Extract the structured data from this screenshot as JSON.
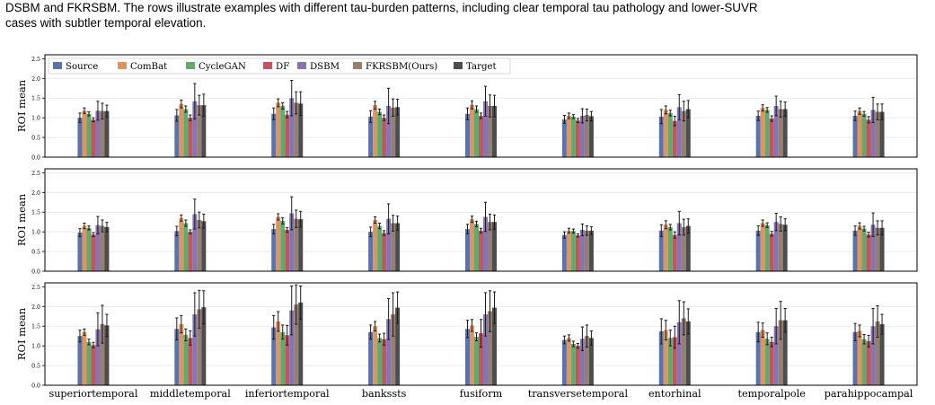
{
  "caption": {
    "line1": "DSBM and FKRSBM. The rows illustrate examples with different tau-burden patterns, including clear temporal tau pathology and lower-SUVR",
    "line2": "cases with subtler temporal elevation."
  },
  "chart_data": {
    "type": "bar",
    "ylabel": "ROI mean",
    "ylim": [
      0,
      2.6
    ],
    "yticks": [
      "0.0",
      "0.5",
      "1.0",
      "1.5",
      "2.0",
      "2.5"
    ],
    "legend_placement": "top-left",
    "grid": "horizontal",
    "categories": [
      "superiortemporal",
      "middletemporal",
      "inferiortemporal",
      "bankssts",
      "fusiform",
      "transversetemporal",
      "entorhinal",
      "temporalpole",
      "parahippocampal"
    ],
    "series": [
      {
        "name": "Source",
        "color": "#5b73a8"
      },
      {
        "name": "ComBat",
        "color": "#e0935f"
      },
      {
        "name": "CycleGAN",
        "color": "#63a96d"
      },
      {
        "name": "DF",
        "color": "#c4545d"
      },
      {
        "name": "DSBM",
        "color": "#8675b1"
      },
      {
        "name": "FKRSBM(Ours)",
        "color": "#957f6f"
      },
      {
        "name": "Target",
        "color": "#4d4d4d"
      }
    ],
    "panels": [
      {
        "values": [
          [
            1.0,
            1.18,
            1.1,
            0.95,
            1.18,
            1.17,
            1.17
          ],
          [
            1.06,
            1.35,
            1.22,
            1.0,
            1.42,
            1.32,
            1.32
          ],
          [
            1.1,
            1.38,
            1.3,
            1.08,
            1.5,
            1.38,
            1.36
          ],
          [
            1.03,
            1.32,
            1.15,
            1.0,
            1.3,
            1.26,
            1.27
          ],
          [
            1.1,
            1.33,
            1.22,
            1.05,
            1.42,
            1.3,
            1.3
          ],
          [
            0.96,
            1.05,
            1.03,
            0.93,
            1.05,
            1.07,
            1.04
          ],
          [
            1.03,
            1.2,
            1.12,
            0.92,
            1.27,
            1.17,
            1.22
          ],
          [
            1.05,
            1.25,
            1.2,
            0.98,
            1.3,
            1.22,
            1.22
          ],
          [
            1.05,
            1.17,
            1.1,
            0.95,
            1.2,
            1.15,
            1.15
          ]
        ],
        "errors": [
          [
            0.12,
            0.07,
            0.05,
            0.05,
            0.24,
            0.2,
            0.15
          ],
          [
            0.15,
            0.1,
            0.08,
            0.07,
            0.45,
            0.25,
            0.28
          ],
          [
            0.15,
            0.1,
            0.08,
            0.08,
            0.45,
            0.28,
            0.3
          ],
          [
            0.15,
            0.1,
            0.07,
            0.07,
            0.45,
            0.22,
            0.2
          ],
          [
            0.15,
            0.1,
            0.08,
            0.07,
            0.38,
            0.28,
            0.27
          ],
          [
            0.1,
            0.07,
            0.05,
            0.05,
            0.18,
            0.15,
            0.12
          ],
          [
            0.18,
            0.1,
            0.07,
            0.12,
            0.32,
            0.25,
            0.22
          ],
          [
            0.12,
            0.08,
            0.06,
            0.07,
            0.25,
            0.2,
            0.18
          ],
          [
            0.12,
            0.08,
            0.06,
            0.08,
            0.32,
            0.2,
            0.2
          ]
        ]
      },
      {
        "values": [
          [
            0.98,
            1.15,
            1.1,
            0.93,
            1.17,
            1.15,
            1.12
          ],
          [
            1.02,
            1.35,
            1.22,
            1.0,
            1.45,
            1.3,
            1.27
          ],
          [
            1.07,
            1.38,
            1.28,
            1.05,
            1.47,
            1.33,
            1.32
          ],
          [
            1.0,
            1.3,
            1.15,
            0.97,
            1.33,
            1.22,
            1.22
          ],
          [
            1.07,
            1.32,
            1.2,
            1.03,
            1.38,
            1.25,
            1.25
          ],
          [
            0.92,
            1.03,
            1.02,
            0.91,
            1.05,
            1.03,
            1.03
          ],
          [
            1.03,
            1.18,
            1.12,
            0.92,
            1.22,
            1.12,
            1.15
          ],
          [
            1.03,
            1.22,
            1.17,
            0.95,
            1.25,
            1.2,
            1.18
          ],
          [
            1.03,
            1.15,
            1.08,
            0.93,
            1.18,
            1.1,
            1.1
          ]
        ],
        "errors": [
          [
            0.1,
            0.07,
            0.05,
            0.05,
            0.22,
            0.15,
            0.12
          ],
          [
            0.12,
            0.08,
            0.08,
            0.05,
            0.38,
            0.2,
            0.18
          ],
          [
            0.12,
            0.08,
            0.08,
            0.06,
            0.42,
            0.22,
            0.2
          ],
          [
            0.12,
            0.08,
            0.07,
            0.06,
            0.38,
            0.2,
            0.18
          ],
          [
            0.12,
            0.08,
            0.07,
            0.06,
            0.37,
            0.2,
            0.18
          ],
          [
            0.08,
            0.06,
            0.05,
            0.04,
            0.15,
            0.12,
            0.1
          ],
          [
            0.15,
            0.1,
            0.07,
            0.08,
            0.3,
            0.2,
            0.18
          ],
          [
            0.12,
            0.08,
            0.06,
            0.06,
            0.22,
            0.18,
            0.15
          ],
          [
            0.12,
            0.08,
            0.06,
            0.06,
            0.3,
            0.18,
            0.18
          ]
        ]
      },
      {
        "values": [
          [
            1.25,
            1.35,
            1.1,
            1.02,
            1.42,
            1.55,
            1.52
          ],
          [
            1.43,
            1.55,
            1.28,
            1.2,
            1.8,
            1.93,
            1.98
          ],
          [
            1.47,
            1.62,
            1.35,
            1.27,
            1.9,
            2.05,
            2.1
          ],
          [
            1.35,
            1.5,
            1.2,
            1.17,
            1.68,
            1.8,
            1.97
          ],
          [
            1.43,
            1.52,
            1.23,
            1.32,
            1.8,
            1.88,
            1.97
          ],
          [
            1.15,
            1.2,
            1.05,
            1.0,
            1.18,
            1.25,
            1.2
          ],
          [
            1.37,
            1.4,
            1.2,
            1.22,
            1.6,
            1.7,
            1.62
          ],
          [
            1.35,
            1.4,
            1.18,
            1.1,
            1.5,
            1.65,
            1.65
          ],
          [
            1.35,
            1.38,
            1.17,
            1.12,
            1.5,
            1.62,
            1.55
          ]
        ],
        "errors": [
          [
            0.15,
            0.08,
            0.07,
            0.07,
            0.42,
            0.48,
            0.28
          ],
          [
            0.28,
            0.22,
            0.15,
            0.18,
            0.55,
            0.48,
            0.42
          ],
          [
            0.3,
            0.25,
            0.18,
            0.25,
            0.62,
            0.5,
            0.42
          ],
          [
            0.18,
            0.12,
            0.1,
            0.15,
            0.52,
            0.55,
            0.4
          ],
          [
            0.22,
            0.15,
            0.1,
            0.35,
            0.55,
            0.52,
            0.4
          ],
          [
            0.1,
            0.08,
            0.07,
            0.06,
            0.3,
            0.28,
            0.18
          ],
          [
            0.32,
            0.25,
            0.2,
            0.28,
            0.55,
            0.42,
            0.32
          ],
          [
            0.25,
            0.18,
            0.15,
            0.12,
            0.45,
            0.48,
            0.3
          ],
          [
            0.22,
            0.15,
            0.12,
            0.15,
            0.45,
            0.4,
            0.25
          ]
        ]
      }
    ]
  }
}
